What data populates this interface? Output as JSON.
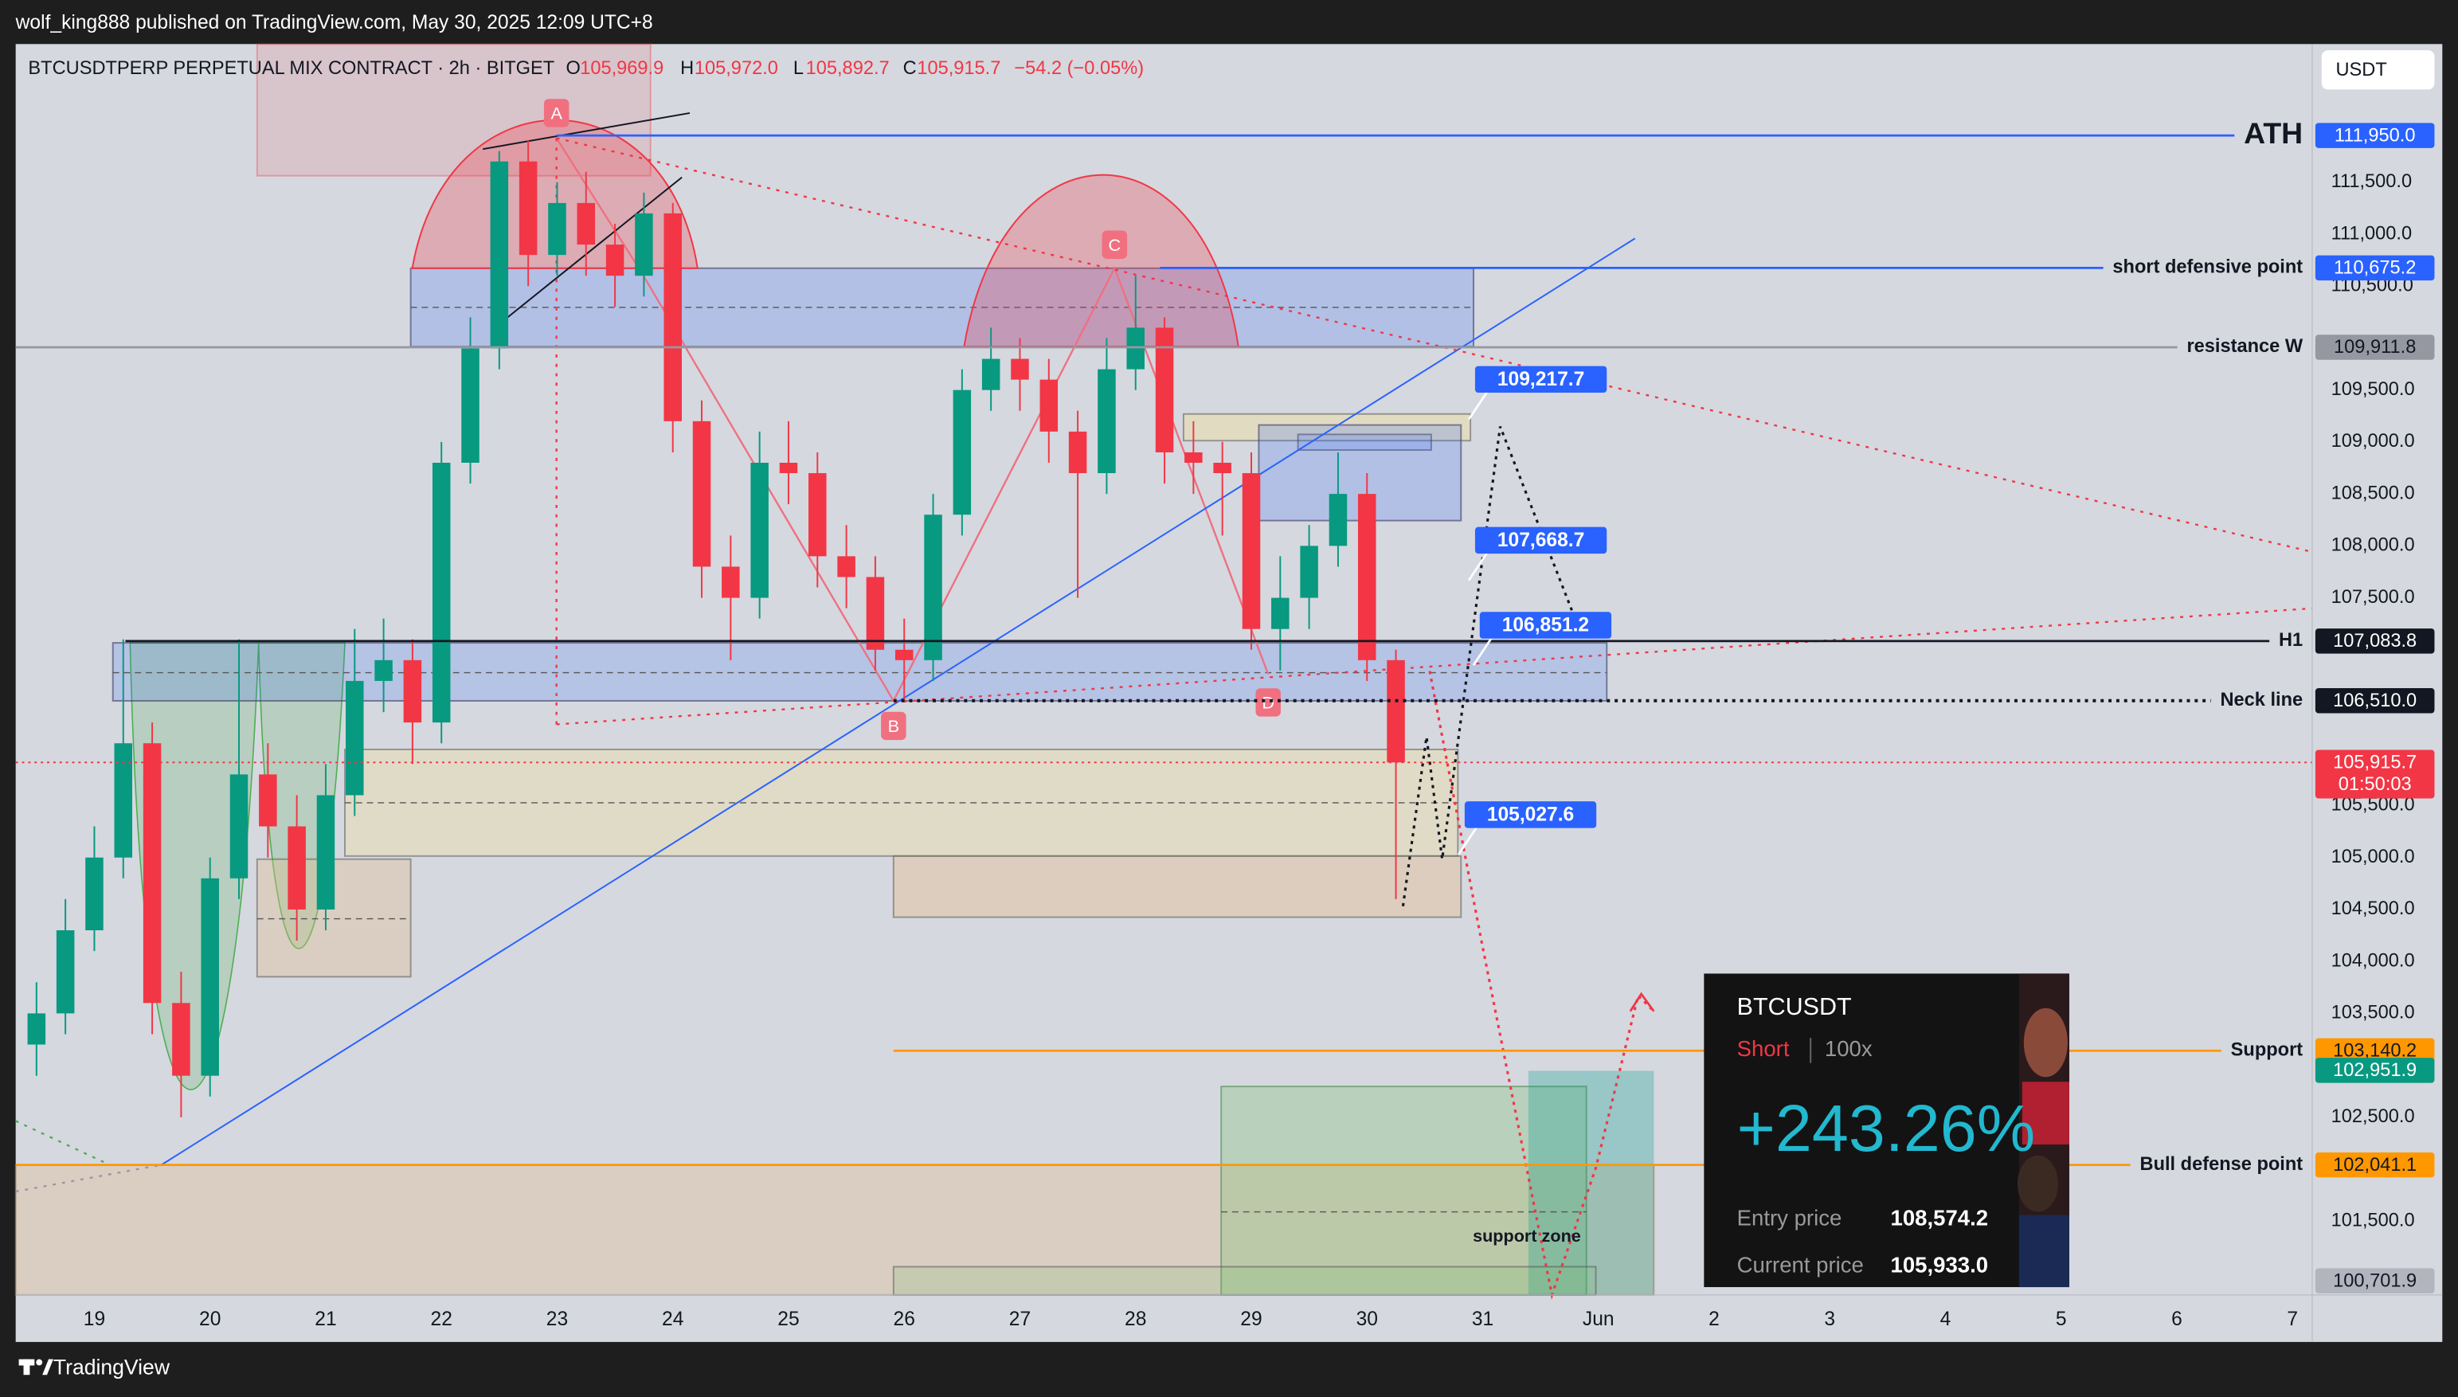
{
  "top_bar": {
    "text": "wolf_king888 published on TradingView.com, May 30, 2025 12:09 UTC+8"
  },
  "header": {
    "symbol": "BTCUSDTPERP PERPETUAL MIX CONTRACT · 2h · BITGET",
    "o_label": "O",
    "o": "105,969.9",
    "h_label": "H",
    "h": "105,972.0",
    "l_label": "L",
    "l": "105,892.7",
    "c_label": "C",
    "c": "105,915.7",
    "change": "−54.2 (−0.05%)"
  },
  "currency_button": "USDT",
  "chart_data": {
    "type": "candlestick",
    "up_color": "#089981",
    "down_color": "#f23645",
    "x": [
      -0.5,
      -0.25,
      0,
      0.25,
      0.5,
      0.75,
      1,
      1.25,
      1.5,
      1.75,
      2,
      2.25,
      2.5,
      2.75,
      3,
      3.25,
      3.5,
      3.75,
      4,
      4.25,
      4.5,
      4.75,
      5,
      5.25,
      5.5,
      5.75,
      6,
      6.25,
      6.5,
      6.75,
      7,
      7.25,
      7.5,
      7.75,
      8,
      8.25,
      8.5,
      8.75,
      9,
      9.25,
      9.5,
      9.75,
      10,
      10.25,
      10.5,
      10.75,
      11,
      11.25
    ],
    "open": [
      103200,
      103500,
      104300,
      105000,
      106100,
      103600,
      102900,
      104800,
      105800,
      105300,
      104500,
      105600,
      106700,
      106900,
      106300,
      108800,
      109900,
      111700,
      110800,
      111300,
      110900,
      110600,
      111200,
      109200,
      107800,
      107500,
      108800,
      108700,
      107900,
      107700,
      107000,
      106900,
      108300,
      109500,
      109800,
      109600,
      109100,
      108700,
      109700,
      110100,
      108900,
      108800,
      108700,
      107200,
      107500,
      108000,
      108500,
      106900
    ],
    "high": [
      103800,
      104600,
      105300,
      107100,
      106300,
      103900,
      105000,
      107100,
      106100,
      105600,
      105900,
      107200,
      107300,
      107100,
      109000,
      110200,
      111800,
      111900,
      111500,
      111600,
      111100,
      111400,
      111300,
      109400,
      108100,
      109100,
      109200,
      108900,
      108200,
      107900,
      107300,
      108500,
      109700,
      110100,
      110000,
      109800,
      109300,
      110000,
      110600,
      110200,
      109200,
      109000,
      108900,
      107900,
      108200,
      108900,
      108700,
      107000
    ],
    "low": [
      102900,
      103300,
      104100,
      104800,
      103300,
      102500,
      102700,
      104600,
      105000,
      104200,
      104300,
      105400,
      106400,
      105900,
      106100,
      108600,
      109700,
      110500,
      110600,
      110600,
      110300,
      110400,
      108900,
      107500,
      106900,
      107300,
      108400,
      107600,
      107400,
      106800,
      106500,
      106700,
      108100,
      109300,
      109300,
      108800,
      107500,
      108500,
      109500,
      108600,
      108500,
      108100,
      107000,
      106800,
      107200,
      107800,
      106700,
      104600
    ],
    "close": [
      103500,
      104300,
      105000,
      106100,
      103600,
      102900,
      104800,
      105800,
      105300,
      104500,
      105600,
      106700,
      106900,
      106300,
      108800,
      109900,
      111700,
      110800,
      111300,
      110900,
      110600,
      111200,
      109200,
      107800,
      107500,
      108800,
      108700,
      107900,
      107700,
      107000,
      106900,
      108300,
      109500,
      109800,
      109600,
      109100,
      108700,
      109700,
      110100,
      108900,
      108800,
      108700,
      107200,
      107500,
      108000,
      108500,
      106900,
      105915.7
    ],
    "xlim": [
      -0.68,
      19.17
    ],
    "xticks": [
      {
        "value": 0,
        "label": "19"
      },
      {
        "value": 1,
        "label": "20"
      },
      {
        "value": 2,
        "label": "21"
      },
      {
        "value": 3,
        "label": "22"
      },
      {
        "value": 4,
        "label": "23"
      },
      {
        "value": 5,
        "label": "24"
      },
      {
        "value": 6,
        "label": "25"
      },
      {
        "value": 7,
        "label": "26"
      },
      {
        "value": 8,
        "label": "27"
      },
      {
        "value": 9,
        "label": "28"
      },
      {
        "value": 10,
        "label": "29"
      },
      {
        "value": 11,
        "label": "30"
      },
      {
        "value": 12,
        "label": "31"
      },
      {
        "value": 13,
        "label": "Jun"
      },
      {
        "value": 14,
        "label": "2"
      },
      {
        "value": 15,
        "label": "3"
      },
      {
        "value": 16,
        "label": "4"
      },
      {
        "value": 17,
        "label": "5"
      },
      {
        "value": 18,
        "label": "6"
      },
      {
        "value": 19,
        "label": "7"
      }
    ],
    "ylim": [
      100790,
      112830
    ],
    "yticks": [
      {
        "value": 101500,
        "label": "101,500.0"
      },
      {
        "value": 102500,
        "label": "102,500.0"
      },
      {
        "value": 103500,
        "label": "103,500.0"
      },
      {
        "value": 104000,
        "label": "104,000.0"
      },
      {
        "value": 104500,
        "label": "104,500.0"
      },
      {
        "value": 105000,
        "label": "105,000.0"
      },
      {
        "value": 105500,
        "label": "105,500.0"
      },
      {
        "value": 107500,
        "label": "107,500.0"
      },
      {
        "value": 108000,
        "label": "108,000.0"
      },
      {
        "value": 108500,
        "label": "108,500.0"
      },
      {
        "value": 109000,
        "label": "109,000.0"
      },
      {
        "value": 109500,
        "label": "109,500.0"
      },
      {
        "value": 110500,
        "label": "110,500.0"
      },
      {
        "value": 111000,
        "label": "111,000.0"
      },
      {
        "value": 111500,
        "label": "111,500.0"
      }
    ],
    "grid": false,
    "levels": [
      {
        "name": "ATH",
        "value": 111950,
        "label": "111,950.0",
        "color": "#2962ff",
        "text_color": "#ffffff",
        "style": "solid"
      },
      {
        "name": "short defensive point",
        "value": 110675.2,
        "label": "110,675.2",
        "color": "#2962ff",
        "text_color": "#ffffff",
        "style": "solid"
      },
      {
        "name": "resistance W",
        "value": 109911.8,
        "label": "109,911.8",
        "color": "#9598a1",
        "text_color": "#131722",
        "style": "solid"
      },
      {
        "name": "H1",
        "value": 107083.8,
        "label": "107,083.8",
        "color": "#131722",
        "text_color": "#ffffff",
        "style": "solid"
      },
      {
        "name": "Neck line",
        "value": 106510,
        "label": "106,510.0",
        "color": "#131722",
        "text_color": "#ffffff",
        "style": "dotted"
      },
      {
        "name": "Support",
        "value": 103140.2,
        "label": "103,140.2",
        "color": "#ff9800",
        "text_color": "#131722",
        "style": "solid"
      },
      {
        "name": "Bull defense point",
        "value": 102041.1,
        "label": "102,041.1",
        "color": "#ff9800",
        "text_color": "#131722",
        "style": "solid"
      }
    ],
    "price_tags": [
      {
        "value": 105915.7,
        "label": "105,915.7",
        "countdown": "01:50:03",
        "color": "#f23645",
        "text_color": "#ffffff"
      },
      {
        "value": 102951.9,
        "label": "102,951.9",
        "color": "#089981",
        "text_color": "#ffffff"
      },
      {
        "value": 100701.9,
        "label": "100,701.9",
        "color": "#b2b5be",
        "text_color": "#131722"
      }
    ],
    "callouts": [
      {
        "x": 11.88,
        "value": 109217.7,
        "label": "109,217.7"
      },
      {
        "x": 11.88,
        "value": 107668.7,
        "label": "107,668.7"
      },
      {
        "x": 11.92,
        "value": 106851.2,
        "label": "106,851.2"
      },
      {
        "x": 11.79,
        "value": 105027.6,
        "label": "105,027.6"
      }
    ]
  },
  "pattern_labels": [
    "A",
    "B",
    "C",
    "D"
  ],
  "zone_label": "support zone",
  "position_card": {
    "symbol": "BTCUSDT",
    "side": "Short",
    "leverage": "100x",
    "pnl": "+243.26%",
    "entry_label": "Entry price",
    "entry": "108,574.2",
    "current_label": "Current price",
    "current": "105,933.0"
  },
  "footer": {
    "brand": "TradingView"
  }
}
